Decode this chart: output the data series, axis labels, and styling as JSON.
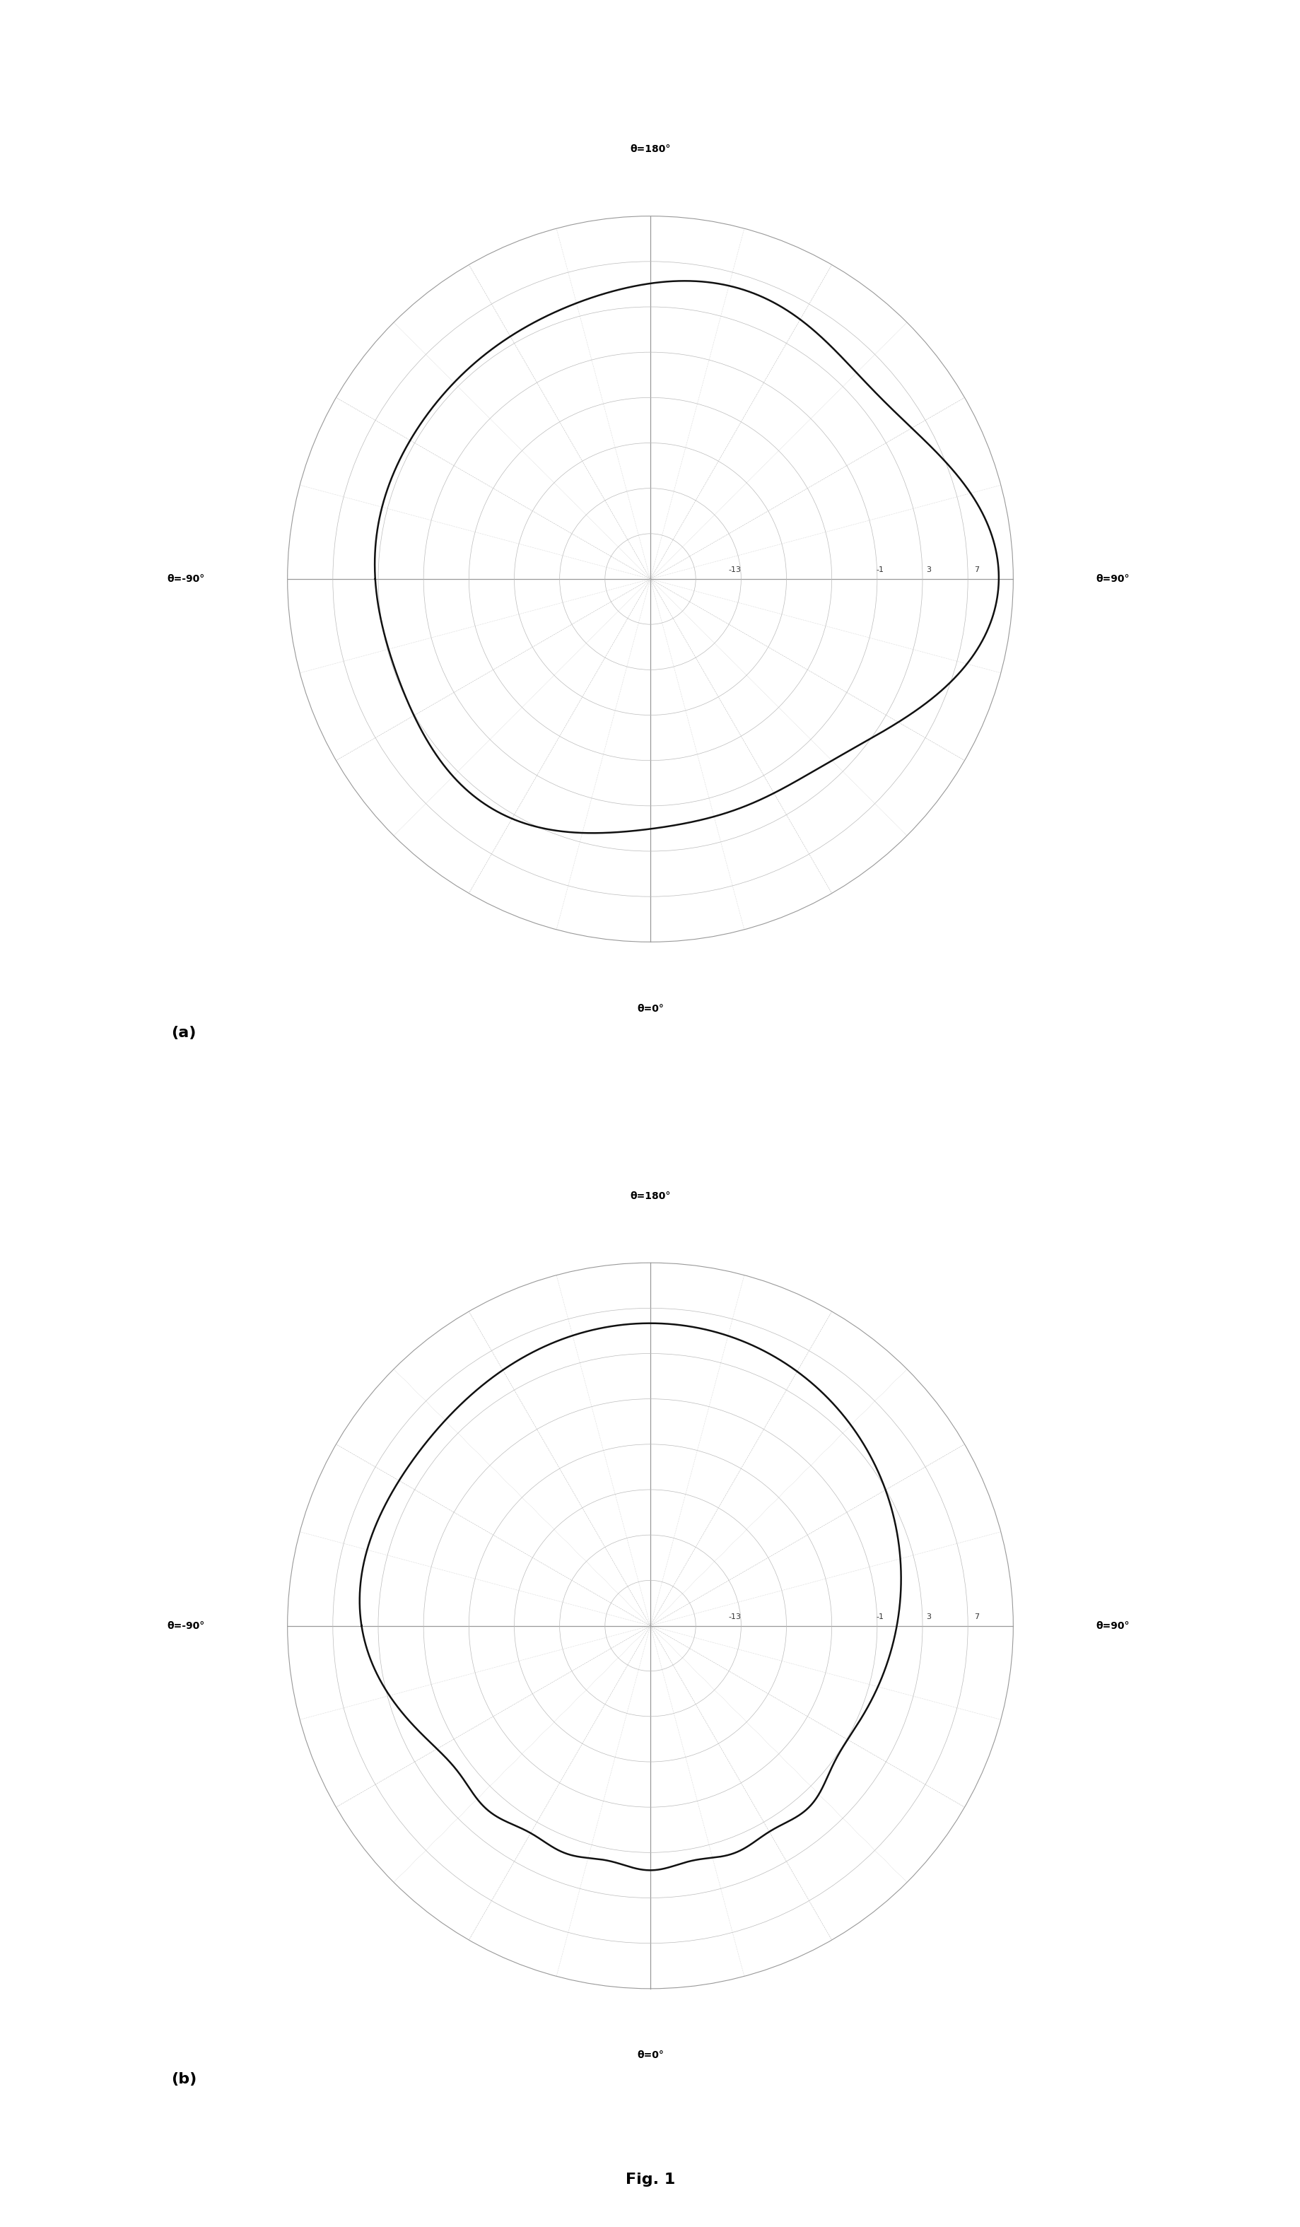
{
  "title_a": "(a)",
  "title_b": "(b)",
  "fig_label": "Fig. 1",
  "r_labels": [
    "-13",
    "-1",
    "3",
    "7"
  ],
  "r_ticks": [
    -13,
    -1,
    3,
    7
  ],
  "r_min": -20,
  "r_max": 10,
  "theta_labels": {
    "top": "θ=180°",
    "bottom": "θ=0°",
    "left": "θ=-90°",
    "right": "θ=90°"
  },
  "background_color": "#ffffff",
  "grid_color_solid": "#999999",
  "grid_color_dot": "#bbbbbb",
  "line_color": "#111111",
  "num_radial_circles": 8,
  "radial_line_angles_deg": [
    0,
    15,
    30,
    45,
    60,
    75,
    90,
    105,
    120,
    135,
    150,
    165,
    180,
    195,
    210,
    225,
    240,
    255,
    270,
    285,
    300,
    315,
    330,
    345
  ]
}
